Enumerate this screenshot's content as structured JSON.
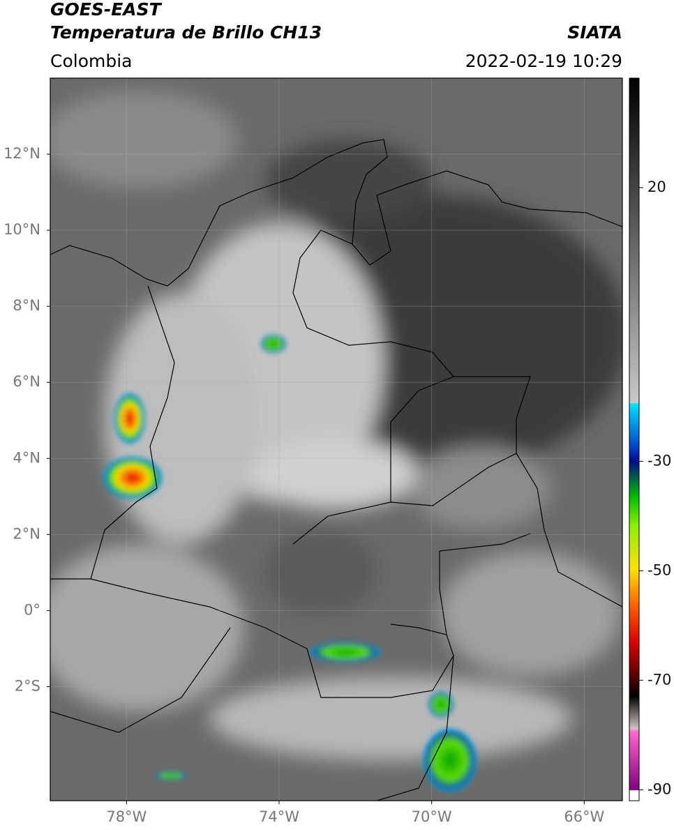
{
  "header": {
    "satellite": "GOES-EAST",
    "product": "Temperatura de Brillo CH13",
    "region": "Colombia",
    "source": "SIATA",
    "datetime": "2022-02-19 10:29"
  },
  "map": {
    "xlim": [
      -80,
      -65
    ],
    "ylim": [
      -5,
      14
    ],
    "xticks": [
      {
        "value": -78,
        "label": "78°W"
      },
      {
        "value": -74,
        "label": "74°W"
      },
      {
        "value": -70,
        "label": "70°W"
      },
      {
        "value": -66,
        "label": "66°W"
      }
    ],
    "yticks": [
      {
        "value": 12,
        "label": "12°N"
      },
      {
        "value": 10,
        "label": "10°N"
      },
      {
        "value": 8,
        "label": "8°N"
      },
      {
        "value": 6,
        "label": "6°N"
      },
      {
        "value": 4,
        "label": "4°N"
      },
      {
        "value": 2,
        "label": "2°N"
      },
      {
        "value": 0,
        "label": "0°"
      },
      {
        "value": -2,
        "label": "2°S"
      }
    ]
  },
  "colorbar": {
    "lim": [
      -92,
      40
    ],
    "ticks": [
      20,
      -30,
      -50,
      -70,
      -90
    ]
  }
}
